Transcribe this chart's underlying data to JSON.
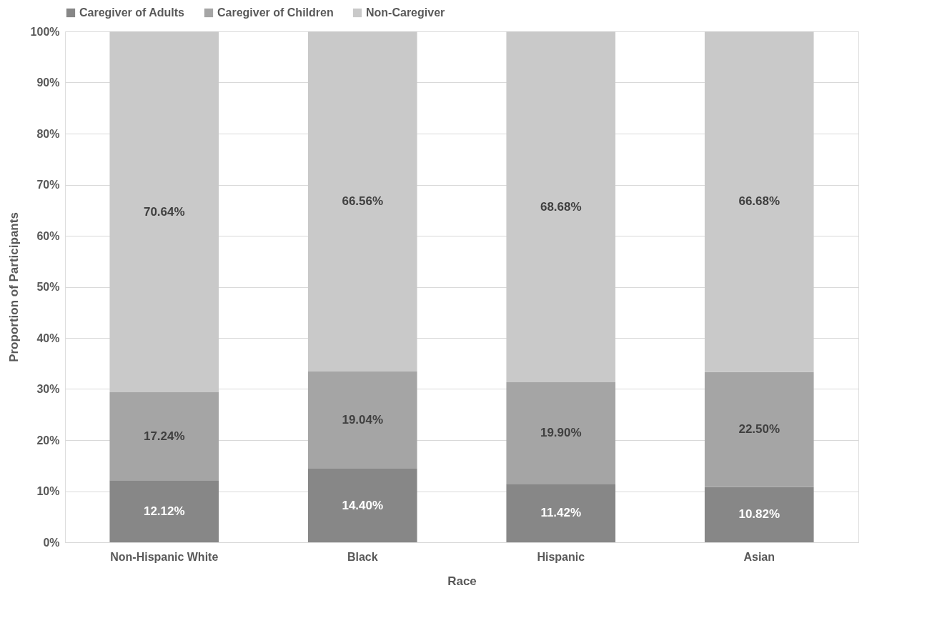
{
  "chart_data": {
    "type": "bar",
    "stacked": true,
    "xlabel": "Race",
    "ylabel": "Proportion of Participants",
    "categories": [
      "Non-Hispanic White",
      "Black",
      "Hispanic",
      "Asian"
    ],
    "series": [
      {
        "name": "Caregiver of Adults",
        "color": "#878787",
        "values": [
          12.12,
          14.4,
          11.42,
          10.82
        ],
        "value_labels": [
          "12.12%",
          "14.40%",
          "11.42%",
          "10.82%"
        ]
      },
      {
        "name": "Caregiver of Children",
        "color": "#a5a5a5",
        "values": [
          17.24,
          19.04,
          19.9,
          22.5
        ],
        "value_labels": [
          "17.24%",
          "19.04%",
          "19.90%",
          "22.50%"
        ]
      },
      {
        "name": "Non-Caregiver",
        "color": "#c9c9c9",
        "values": [
          70.64,
          66.56,
          68.68,
          66.68
        ],
        "value_labels": [
          "70.64%",
          "66.56%",
          "68.68%",
          "66.68%"
        ]
      }
    ],
    "ylim": [
      0,
      100
    ],
    "yticks": [
      {
        "value": 0,
        "label": "0%"
      },
      {
        "value": 10,
        "label": "10%"
      },
      {
        "value": 20,
        "label": "20%"
      },
      {
        "value": 30,
        "label": "30%"
      },
      {
        "value": 40,
        "label": "40%"
      },
      {
        "value": 50,
        "label": "50%"
      },
      {
        "value": 60,
        "label": "60%"
      },
      {
        "value": 70,
        "label": "70%"
      },
      {
        "value": 80,
        "label": "80%"
      },
      {
        "value": 90,
        "label": "90%"
      },
      {
        "value": 100,
        "label": "100%"
      }
    ],
    "grid": "y",
    "legend": "top"
  }
}
